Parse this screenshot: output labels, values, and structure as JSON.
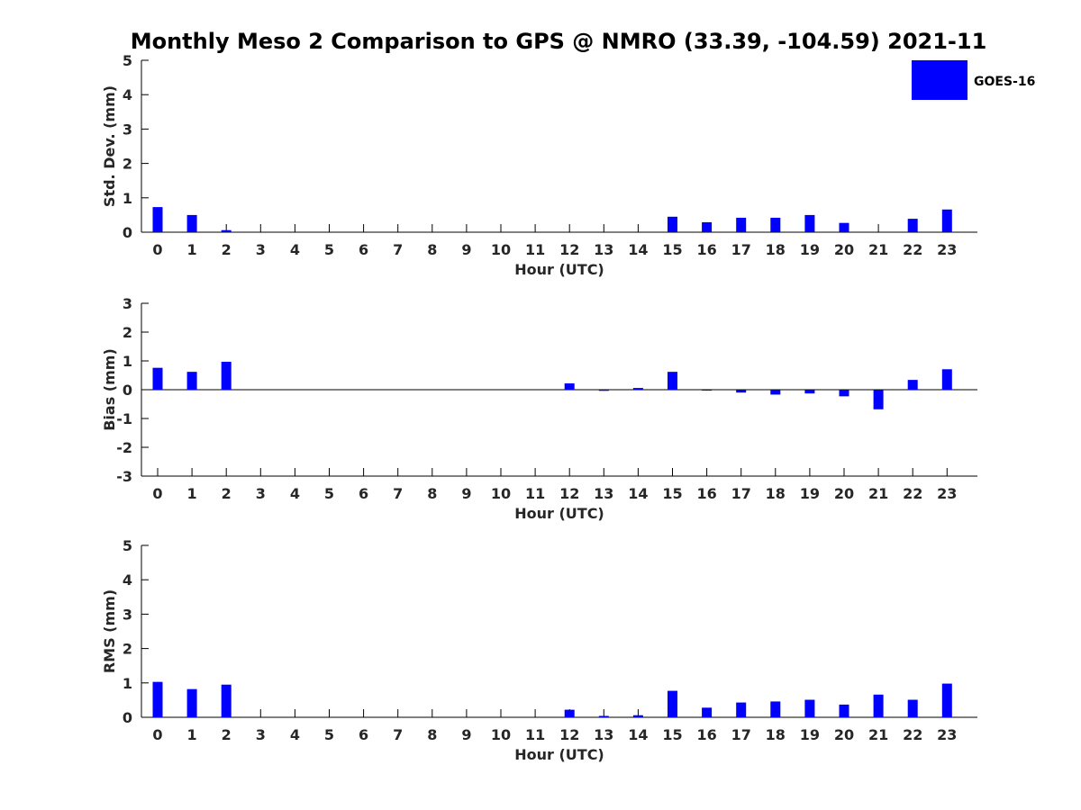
{
  "figure": {
    "title": "Monthly Meso 2 Comparison to GPS @ NMRO (33.39, -104.59) 2021-11",
    "legend": {
      "label": "GOES-16",
      "color": "#0000ff",
      "placement": "top-right"
    }
  },
  "chart_data": [
    {
      "type": "bar",
      "ylabel": "Std. Dev. (mm)",
      "xlabel": "Hour (UTC)",
      "ylim": [
        0,
        5
      ],
      "yticks": [
        0,
        1,
        2,
        3,
        4,
        5
      ],
      "categories": [
        "0",
        "1",
        "2",
        "3",
        "4",
        "5",
        "6",
        "7",
        "8",
        "9",
        "10",
        "11",
        "12",
        "13",
        "14",
        "15",
        "16",
        "17",
        "18",
        "19",
        "20",
        "21",
        "22",
        "23"
      ],
      "series": [
        {
          "name": "GOES-16",
          "color": "#0000ff",
          "values": [
            0.73,
            0.5,
            0.06,
            null,
            null,
            null,
            null,
            null,
            null,
            null,
            null,
            null,
            null,
            null,
            null,
            0.45,
            0.29,
            0.42,
            0.42,
            0.5,
            0.27,
            null,
            0.39,
            0.66
          ]
        }
      ]
    },
    {
      "type": "bar",
      "ylabel": "Bias (mm)",
      "xlabel": "Hour (UTC)",
      "ylim": [
        -3,
        3
      ],
      "yticks": [
        -3,
        -2,
        -1,
        0,
        1,
        2,
        3
      ],
      "categories": [
        "0",
        "1",
        "2",
        "3",
        "4",
        "5",
        "6",
        "7",
        "8",
        "9",
        "10",
        "11",
        "12",
        "13",
        "14",
        "15",
        "16",
        "17",
        "18",
        "19",
        "20",
        "21",
        "22",
        "23"
      ],
      "series": [
        {
          "name": "GOES-16",
          "color": "#0000ff",
          "values": [
            0.76,
            0.62,
            0.97,
            null,
            null,
            null,
            null,
            null,
            null,
            null,
            null,
            null,
            0.22,
            -0.04,
            0.06,
            0.62,
            -0.02,
            -0.1,
            -0.17,
            -0.13,
            -0.23,
            -0.68,
            0.34,
            0.71
          ]
        }
      ]
    },
    {
      "type": "bar",
      "ylabel": "RMS (mm)",
      "xlabel": "Hour (UTC)",
      "ylim": [
        0,
        5
      ],
      "yticks": [
        0,
        1,
        2,
        3,
        4,
        5
      ],
      "categories": [
        "0",
        "1",
        "2",
        "3",
        "4",
        "5",
        "6",
        "7",
        "8",
        "9",
        "10",
        "11",
        "12",
        "13",
        "14",
        "15",
        "16",
        "17",
        "18",
        "19",
        "20",
        "21",
        "22",
        "23"
      ],
      "series": [
        {
          "name": "GOES-16",
          "color": "#0000ff",
          "values": [
            1.03,
            0.82,
            0.95,
            null,
            null,
            null,
            null,
            null,
            null,
            null,
            null,
            null,
            0.22,
            0.04,
            0.06,
            0.77,
            0.28,
            0.43,
            0.46,
            0.51,
            0.37,
            0.66,
            0.51,
            0.98
          ]
        }
      ]
    }
  ]
}
